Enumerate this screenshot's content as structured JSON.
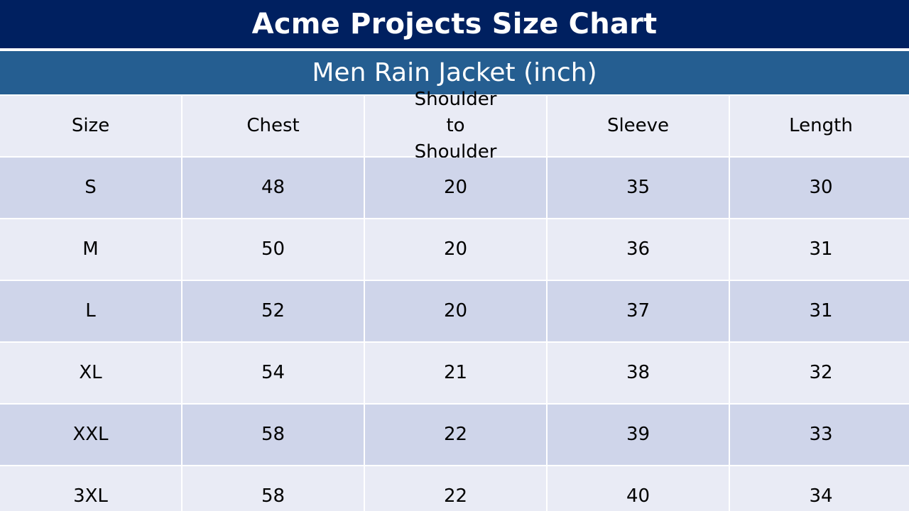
{
  "title": "Acme Projects Size Chart",
  "subtitle": "Men Rain Jacket (inch)",
  "colors": {
    "title_bg": "#002060",
    "subtitle_bg": "#255e91",
    "header_row_bg": "#e9ebf5",
    "band_dark": "#cfd5ea",
    "band_light": "#e9ebf5"
  },
  "table": {
    "headers": [
      "Size",
      "Chest",
      "Shoulder to Shoulder",
      "Sleeve",
      "Length"
    ],
    "rows": [
      [
        "S",
        "48",
        "20",
        "35",
        "30"
      ],
      [
        "M",
        "50",
        "20",
        "36",
        "31"
      ],
      [
        "L",
        "52",
        "20",
        "37",
        "31"
      ],
      [
        "XL",
        "54",
        "21",
        "38",
        "32"
      ],
      [
        "XXL",
        "58",
        "22",
        "39",
        "33"
      ],
      [
        "3XL",
        "58",
        "22",
        "40",
        "34"
      ]
    ]
  }
}
